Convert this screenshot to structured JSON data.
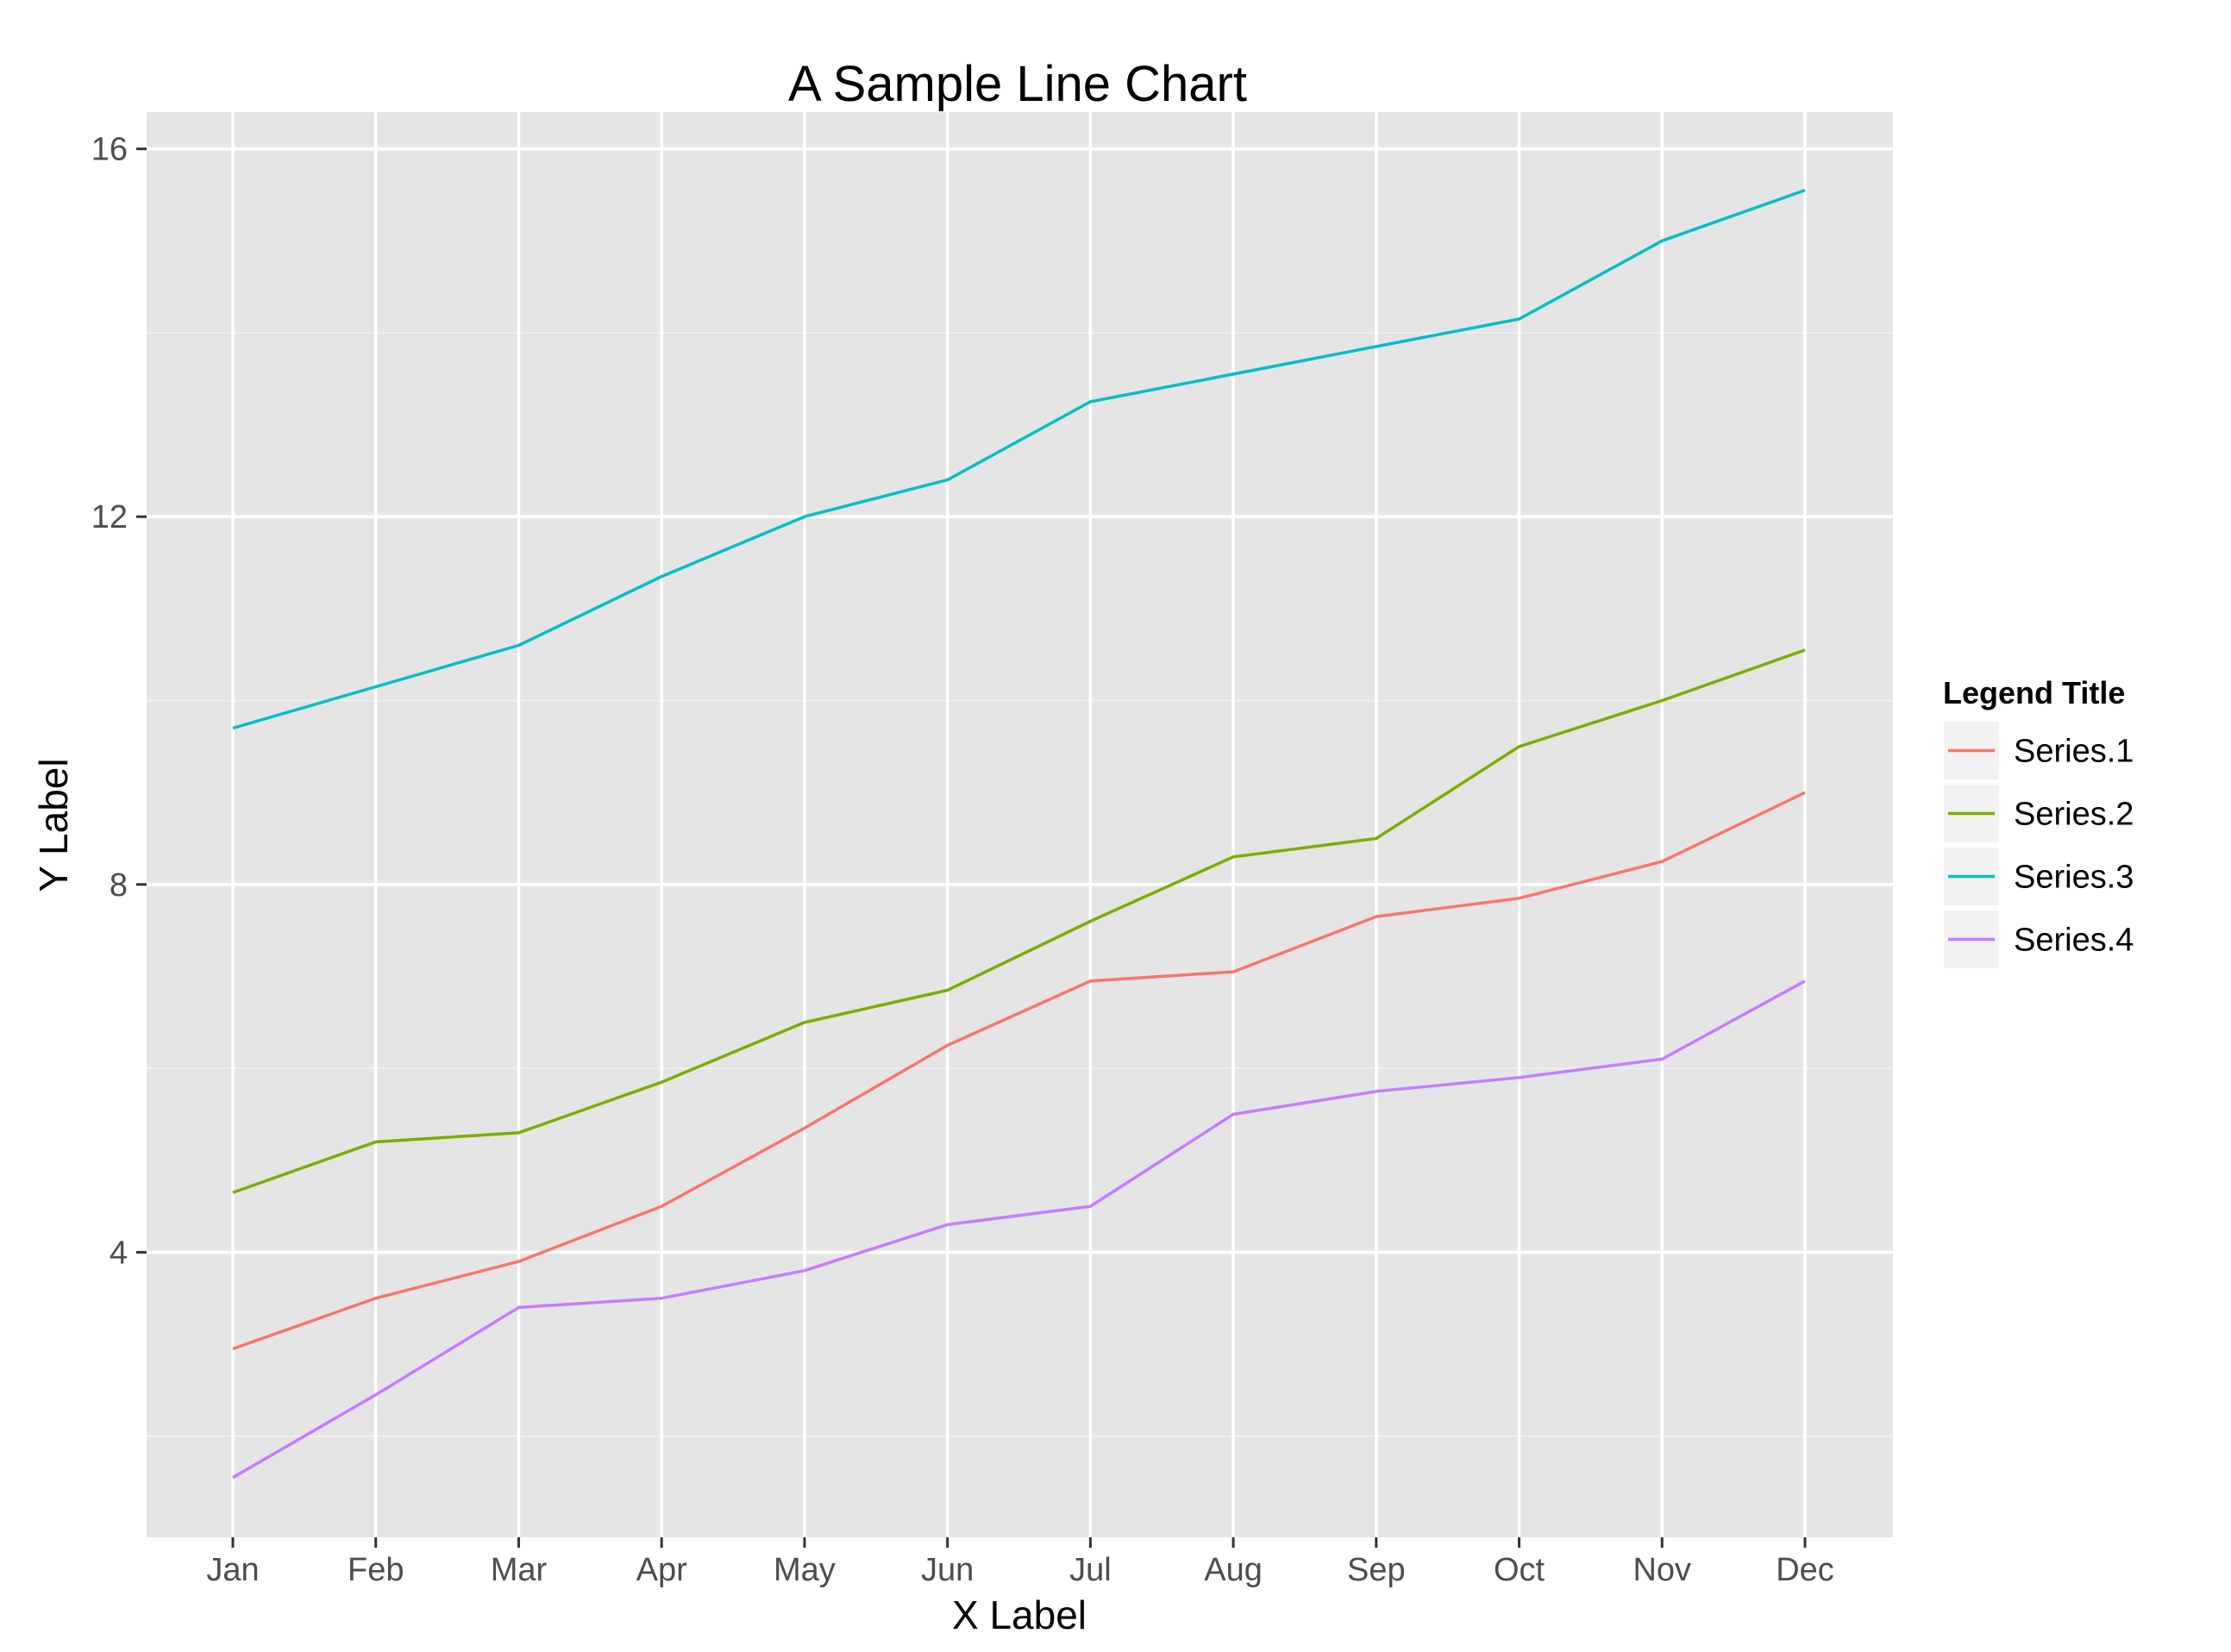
{
  "chart_data": {
    "type": "line",
    "title": "A Sample Line Chart",
    "xlabel": "X Label",
    "ylabel": "Y Label",
    "categories": [
      "Jan",
      "Feb",
      "Mar",
      "Apr",
      "May",
      "Jun",
      "Jul",
      "Aug",
      "Sep",
      "Oct",
      "Nov",
      "Dec"
    ],
    "y_ticks": [
      4,
      8,
      12,
      16
    ],
    "y_tick_labels": [
      "4",
      "8",
      "12",
      "16"
    ],
    "ylim": [
      0.9,
      16.4
    ],
    "grid": true,
    "legend": {
      "title": "Legend Title",
      "placement": "right"
    },
    "colors": {
      "panel_background": "#e5e5e5",
      "grid_major": "#ffffff",
      "grid_minor": "#f2f2f2"
    },
    "series": [
      {
        "name": "Series.1",
        "color": "#f8766d",
        "values": [
          2.95,
          3.5,
          3.9,
          4.5,
          5.35,
          6.25,
          6.95,
          7.05,
          7.65,
          7.85,
          8.25,
          9.0
        ]
      },
      {
        "name": "Series.2",
        "color": "#7cae00",
        "values": [
          4.65,
          5.2,
          5.3,
          5.85,
          6.5,
          6.85,
          7.6,
          8.3,
          8.5,
          9.5,
          10.0,
          10.55
        ]
      },
      {
        "name": "Series.3",
        "color": "#00bfc4",
        "values": [
          9.7,
          10.15,
          10.6,
          11.35,
          12.0,
          12.4,
          13.25,
          13.55,
          13.85,
          14.15,
          15.0,
          15.55
        ]
      },
      {
        "name": "Series.4",
        "color": "#c77cff",
        "values": [
          1.55,
          2.45,
          3.4,
          3.5,
          3.8,
          4.3,
          4.5,
          5.5,
          5.75,
          5.9,
          6.1,
          6.95
        ]
      }
    ]
  }
}
